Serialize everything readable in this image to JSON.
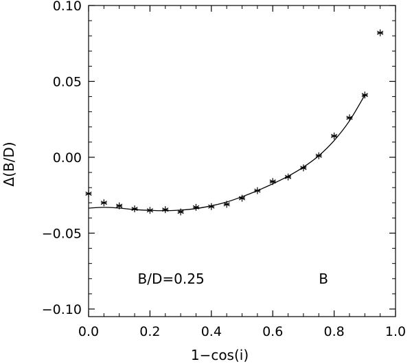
{
  "chart_data": {
    "type": "scatter",
    "xlabel": "1−cos(i)",
    "ylabel": "Δ(B/D)",
    "xlim": [
      0.0,
      1.0
    ],
    "ylim": [
      -0.105,
      0.1
    ],
    "grid": false,
    "x_ticks": [
      {
        "value": 0.0,
        "label": "0.0"
      },
      {
        "value": 0.2,
        "label": "0.2"
      },
      {
        "value": 0.4,
        "label": "0.4"
      },
      {
        "value": 0.6,
        "label": "0.6"
      },
      {
        "value": 0.8,
        "label": "0.8"
      },
      {
        "value": 1.0,
        "label": "1.0"
      }
    ],
    "y_ticks": [
      {
        "value": -0.1,
        "label": "−0.10"
      },
      {
        "value": -0.05,
        "label": "−0.05"
      },
      {
        "value": 0.0,
        "label": "0.00"
      },
      {
        "value": 0.05,
        "label": "0.05"
      },
      {
        "value": 0.1,
        "label": "0.10"
      }
    ],
    "points": {
      "marker": "asterisk",
      "x": [
        0.0,
        0.05,
        0.1,
        0.15,
        0.2,
        0.25,
        0.3,
        0.35,
        0.4,
        0.45,
        0.5,
        0.55,
        0.6,
        0.65,
        0.7,
        0.75,
        0.8,
        0.85,
        0.9,
        0.95
      ],
      "y": [
        -0.024,
        -0.03,
        -0.032,
        -0.034,
        -0.035,
        -0.0345,
        -0.036,
        -0.033,
        -0.0325,
        -0.031,
        -0.027,
        -0.022,
        -0.016,
        -0.013,
        -0.007,
        0.001,
        0.014,
        0.026,
        0.041,
        0.082
      ]
    },
    "fit_line": {
      "x": [
        0.0,
        0.05,
        0.1,
        0.15,
        0.2,
        0.25,
        0.3,
        0.35,
        0.4,
        0.45,
        0.5,
        0.55,
        0.6,
        0.65,
        0.7,
        0.75,
        0.8,
        0.85,
        0.9
      ],
      "y": [
        -0.0335,
        -0.033,
        -0.0335,
        -0.0345,
        -0.035,
        -0.0352,
        -0.0348,
        -0.0338,
        -0.032,
        -0.0295,
        -0.026,
        -0.022,
        -0.0175,
        -0.0125,
        -0.0065,
        0.001,
        0.011,
        0.024,
        0.041
      ]
    },
    "annotations": [
      {
        "text": "B/D=0.25",
        "x": 0.16,
        "y": -0.08
      },
      {
        "text": "B",
        "x": 0.75,
        "y": -0.08
      }
    ]
  }
}
